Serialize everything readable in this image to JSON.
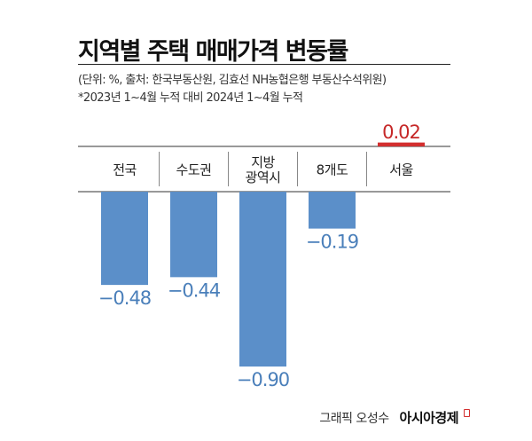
{
  "header": {
    "title": "지역별 주택 매매가격 변동률",
    "source": "(단위: %, 출처: 한국부동산원, 김효선 NH농협은행 부동산수석위원)",
    "note": "*2023년 1~4월 누적 대비 2024년 1~4월 누적"
  },
  "credit": {
    "author": "그래픽 오성수",
    "brand": "아시아경제"
  },
  "colors": {
    "negative": "#5b8fc9",
    "positive": "#d32f2f",
    "negative_label": "#4a7fba",
    "positive_label": "#c62828"
  },
  "chart_data": {
    "type": "bar",
    "categories": [
      "전국",
      "수도권",
      "지방\n광역시",
      "8개도",
      "서울"
    ],
    "values": [
      -0.48,
      -0.44,
      -0.9,
      -0.19,
      0.02
    ],
    "value_labels": [
      "−0.48",
      "−0.44",
      "−0.90",
      "−0.19",
      "0.02"
    ],
    "title": "지역별 주택 매매가격 변동률",
    "xlabel": "",
    "ylabel": "",
    "grid": false,
    "legend": "none"
  }
}
